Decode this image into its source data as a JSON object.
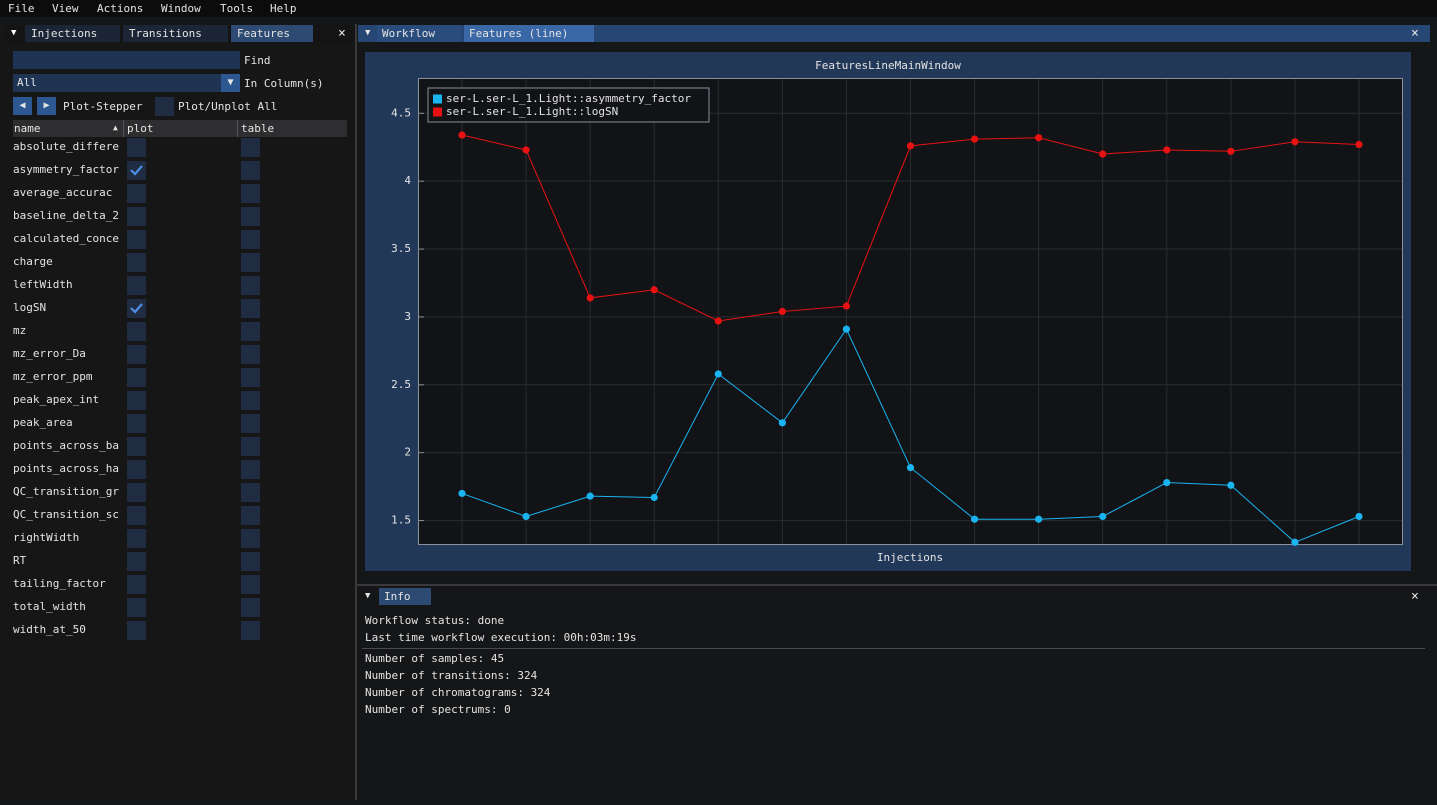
{
  "menu": [
    "File",
    "View",
    "Actions",
    "Window",
    "Tools",
    "Help"
  ],
  "left_panel": {
    "tabs": [
      "Injections",
      "Transitions",
      "Features"
    ],
    "find_label": "Find",
    "column_select": "All",
    "column_label": "In Column(s)",
    "stepper_label": "Plot-Stepper",
    "plot_all_label": "Plot/Unplot All",
    "table_headers": [
      "name",
      "plot",
      "table"
    ],
    "rows": [
      {
        "name": "absolute_differe",
        "plot": false
      },
      {
        "name": "asymmetry_factor",
        "plot": true
      },
      {
        "name": "average_accurac",
        "plot": false
      },
      {
        "name": "baseline_delta_2",
        "plot": false
      },
      {
        "name": "calculated_conce",
        "plot": false
      },
      {
        "name": "charge",
        "plot": false
      },
      {
        "name": "leftWidth",
        "plot": false
      },
      {
        "name": "logSN",
        "plot": true
      },
      {
        "name": "mz",
        "plot": false
      },
      {
        "name": "mz_error_Da",
        "plot": false
      },
      {
        "name": "mz_error_ppm",
        "plot": false
      },
      {
        "name": "peak_apex_int",
        "plot": false
      },
      {
        "name": "peak_area",
        "plot": false
      },
      {
        "name": "points_across_ba",
        "plot": false
      },
      {
        "name": "points_across_ha",
        "plot": false
      },
      {
        "name": "QC_transition_gr",
        "plot": false
      },
      {
        "name": "QC_transition_sc",
        "plot": false
      },
      {
        "name": "rightWidth",
        "plot": false
      },
      {
        "name": "RT",
        "plot": false
      },
      {
        "name": "tailing_factor",
        "plot": false
      },
      {
        "name": "total_width",
        "plot": false
      },
      {
        "name": "width_at_50",
        "plot": false
      }
    ]
  },
  "workflow_panel": {
    "tabs": [
      "Workflow",
      "Features (line)"
    ]
  },
  "chart_data": {
    "type": "line",
    "title": "FeaturesLineMainWindow",
    "x_label": "Injections",
    "categories": [
      null,
      null,
      null,
      null,
      null,
      null,
      null,
      null,
      null,
      null,
      null,
      null,
      null,
      null,
      null
    ],
    "series": [
      {
        "name": "ser-L.ser-L_1.Light::asymmetry_factor",
        "color": "#1ab4f0",
        "values": [
          1.7,
          1.53,
          1.68,
          1.67,
          2.58,
          2.22,
          2.91,
          1.89,
          1.51,
          1.51,
          1.53,
          1.78,
          1.76,
          1.34,
          1.53
        ]
      },
      {
        "name": "ser-L.ser-L_1.Light::logSN",
        "color": "#e81212",
        "values": [
          4.34,
          4.23,
          3.14,
          3.2,
          2.97,
          3.04,
          3.08,
          4.26,
          4.31,
          4.32,
          4.2,
          4.23,
          4.22,
          4.29,
          4.27
        ]
      }
    ],
    "ylim": [
      1.32,
      4.76
    ],
    "yticks": [
      1.5,
      2,
      2.5,
      3,
      3.5,
      4,
      4.5
    ],
    "grid": true,
    "legend": "top-left"
  },
  "info_panel": {
    "tab": "Info",
    "status_lines": [
      "Workflow status: done",
      "Last time workflow execution: 00h:03m:19s"
    ],
    "count_lines": [
      "Number of samples: 45",
      "Number of transitions: 324",
      "Number of chromatograms: 324",
      "Number of spectrums: 0"
    ]
  }
}
